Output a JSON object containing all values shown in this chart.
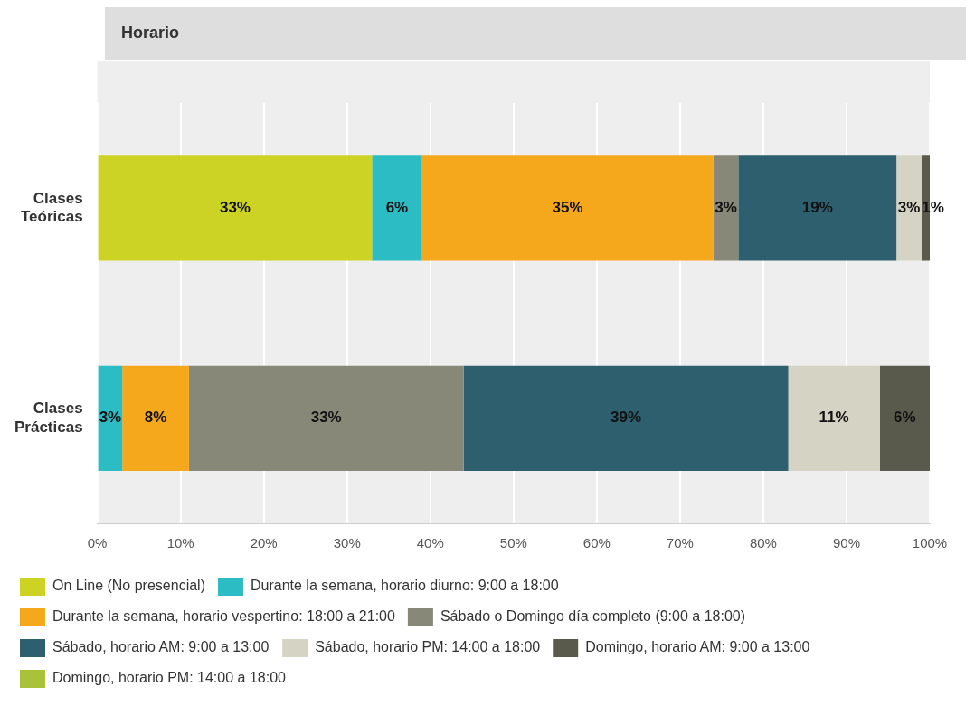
{
  "chart_data": {
    "type": "bar",
    "orientation": "horizontal",
    "stacked": true,
    "title": "Horario",
    "categories": [
      "Clases Teóricas",
      "Clases Prácticas"
    ],
    "series": [
      {
        "name": "On Line (No presencial)",
        "color": "#cdd325",
        "values": [
          33,
          0
        ],
        "value_labels": [
          "33%",
          null
        ]
      },
      {
        "name": "Durante la semana, horario diurno: 9:00 a 18:00",
        "color": "#2bbcc4",
        "values": [
          6,
          3
        ],
        "value_labels": [
          "6%",
          "3%"
        ]
      },
      {
        "name": "Durante la semana, horario vespertino: 18:00 a 21:00",
        "color": "#f5a81c",
        "values": [
          35,
          8
        ],
        "value_labels": [
          "35%",
          "8%"
        ]
      },
      {
        "name": "Sábado o Domingo día completo (9:00 a 18:00)",
        "color": "#878878",
        "values": [
          3,
          33
        ],
        "value_labels": [
          "3%",
          "33%"
        ]
      },
      {
        "name": "Sábado, horario AM: 9:00 a 13:00",
        "color": "#2d5f6e",
        "values": [
          19,
          39
        ],
        "value_labels": [
          "19%",
          "39%"
        ]
      },
      {
        "name": "Sábado, horario PM: 14:00 a 18:00",
        "color": "#d5d3c4",
        "values": [
          3,
          11
        ],
        "value_labels": [
          "3%",
          "11%"
        ]
      },
      {
        "name": "Domingo, horario AM: 9:00 a 13:00",
        "color": "#5a5a4c",
        "values": [
          1,
          6
        ],
        "value_labels": [
          "1%",
          "6%"
        ]
      },
      {
        "name": "Domingo, horario PM: 14:00 a 18:00",
        "color": "#a8c23a",
        "values": [
          0,
          0
        ],
        "value_labels": [
          null,
          null
        ]
      }
    ],
    "xlim": [
      0,
      100
    ],
    "xticks": [
      {
        "value": 0,
        "label": "0%"
      },
      {
        "value": 10,
        "label": "10%"
      },
      {
        "value": 20,
        "label": "20%"
      },
      {
        "value": 30,
        "label": "30%"
      },
      {
        "value": 40,
        "label": "40%"
      },
      {
        "value": 50,
        "label": "50%"
      },
      {
        "value": 60,
        "label": "60%"
      },
      {
        "value": 70,
        "label": "70%"
      },
      {
        "value": 80,
        "label": "80%"
      },
      {
        "value": 90,
        "label": "90%"
      },
      {
        "value": 100,
        "label": "100%"
      }
    ],
    "grid": "x",
    "legend": "bottom"
  }
}
